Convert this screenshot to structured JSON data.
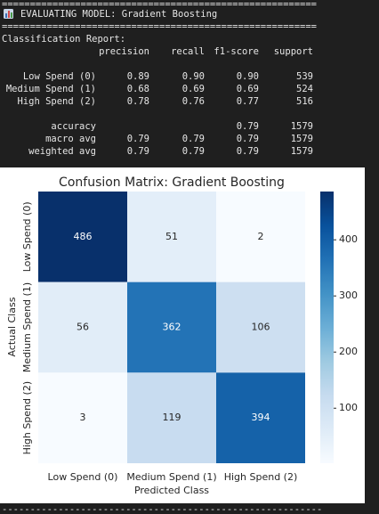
{
  "separator": "========================================================",
  "header": {
    "title": "EVALUATING MODEL: Gradient Boosting"
  },
  "report": {
    "title": "Classification Report:",
    "columns": [
      "precision",
      "recall",
      "f1-score",
      "support"
    ],
    "rows": [
      {
        "label": "Low Spend (0)",
        "precision": "0.89",
        "recall": "0.90",
        "f1-score": "0.90",
        "support": "539"
      },
      {
        "label": "Medium Spend (1)",
        "precision": "0.68",
        "recall": "0.69",
        "f1-score": "0.69",
        "support": "524"
      },
      {
        "label": "High Spend (2)",
        "precision": "0.78",
        "recall": "0.76",
        "f1-score": "0.77",
        "support": "516"
      }
    ],
    "summary": [
      {
        "label": "accuracy",
        "f1-score": "0.79",
        "support": "1579"
      },
      {
        "label": "macro avg",
        "precision": "0.79",
        "recall": "0.79",
        "f1-score": "0.79",
        "support": "1579"
      },
      {
        "label": "weighted avg",
        "precision": "0.79",
        "recall": "0.79",
        "f1-score": "0.79",
        "support": "1579"
      }
    ]
  },
  "chart_data": {
    "type": "heatmap",
    "title": "Confusion Matrix: Gradient Boosting",
    "xlabel": "Predicted Class",
    "ylabel": "Actual Class",
    "x_categories": [
      "Low Spend (0)",
      "Medium Spend (1)",
      "High Spend (2)"
    ],
    "y_categories": [
      "Low Spend (0)",
      "Medium Spend (1)",
      "High Spend (2)"
    ],
    "values": [
      [
        486,
        51,
        2
      ],
      [
        56,
        362,
        106
      ],
      [
        3,
        119,
        394
      ]
    ],
    "clim": [
      2,
      486
    ],
    "cticks": [
      100,
      200,
      300,
      400
    ],
    "colormap": [
      "#f7fbff",
      "#deebf7",
      "#c6dbef",
      "#9ecae1",
      "#6baed6",
      "#4292c6",
      "#2171b5",
      "#08519c",
      "#08306b"
    ]
  },
  "footer_separator": "---------------------------------------------------------"
}
